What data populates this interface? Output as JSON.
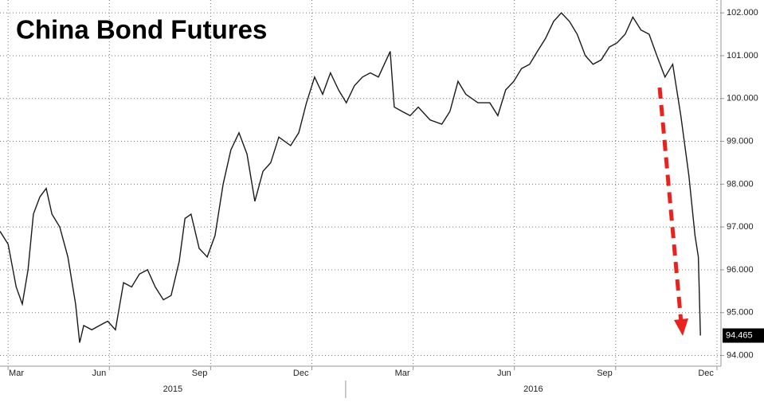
{
  "chart_data": {
    "type": "line",
    "title": "China Bond Futures",
    "x": [
      1.76,
      2.0,
      2.24,
      2.42,
      2.59,
      2.75,
      2.94,
      3.13,
      3.3,
      3.53,
      3.77,
      4.0,
      4.12,
      4.24,
      4.48,
      4.71,
      4.95,
      5.18,
      5.42,
      5.66,
      5.89,
      6.13,
      6.36,
      6.6,
      6.83,
      7.07,
      7.24,
      7.42,
      7.66,
      7.9,
      8.13,
      8.37,
      8.6,
      8.84,
      9.08,
      9.31,
      9.55,
      9.78,
      10.02,
      10.37,
      10.61,
      10.84,
      11.08,
      11.32,
      11.55,
      11.79,
      12.02,
      12.26,
      12.5,
      12.73,
      12.97,
      13.32,
      13.44,
      13.67,
      13.91,
      14.15,
      14.5,
      14.85,
      15.09,
      15.33,
      15.56,
      15.92,
      16.27,
      16.51,
      16.74,
      16.98,
      17.21,
      17.45,
      17.68,
      17.92,
      18.16,
      18.39,
      18.63,
      18.86,
      19.1,
      19.33,
      19.57,
      19.81,
      20.04,
      20.28,
      20.51,
      20.75,
      20.99,
      21.22,
      21.46,
      21.69,
      21.93,
      22.17,
      22.35,
      22.45,
      22.51
    ],
    "values": [
      96.9,
      96.6,
      95.6,
      95.2,
      96.0,
      97.3,
      97.7,
      97.9,
      97.3,
      97.0,
      96.3,
      95.2,
      94.3,
      94.7,
      94.6,
      94.7,
      94.8,
      94.6,
      95.7,
      95.6,
      95.9,
      96.0,
      95.6,
      95.3,
      95.4,
      96.2,
      97.2,
      97.3,
      96.5,
      96.3,
      96.8,
      98.0,
      98.8,
      99.2,
      98.7,
      97.6,
      98.3,
      98.5,
      99.1,
      98.9,
      99.2,
      99.9,
      100.5,
      100.1,
      100.6,
      100.2,
      99.9,
      100.3,
      100.5,
      100.6,
      100.5,
      101.1,
      99.8,
      99.7,
      99.6,
      99.8,
      99.5,
      99.4,
      99.7,
      100.4,
      100.1,
      99.9,
      99.9,
      99.6,
      100.2,
      100.4,
      100.7,
      100.8,
      101.1,
      101.4,
      101.8,
      102.0,
      101.8,
      101.5,
      101.0,
      100.8,
      100.9,
      101.2,
      101.3,
      101.5,
      101.9,
      101.6,
      101.5,
      101.0,
      100.5,
      100.8,
      99.6,
      98.2,
      96.8,
      96.3,
      94.465
    ],
    "color": "#1a1a1a",
    "last_price": 94.465,
    "xlim": [
      1.76,
      23.12
    ],
    "xticks": [
      {
        "value": 2,
        "label": "Mar"
      },
      {
        "value": 5,
        "label": "Jun"
      },
      {
        "value": 8,
        "label": "Sep"
      },
      {
        "value": 11,
        "label": "Dec"
      },
      {
        "value": 14,
        "label": "Mar"
      },
      {
        "value": 17,
        "label": "Jun"
      },
      {
        "value": 20,
        "label": "Sep"
      },
      {
        "value": 23,
        "label": "Dec"
      }
    ],
    "year_labels": [
      "2015",
      "2016"
    ],
    "ylim": [
      93.75,
      102.3
    ],
    "yticks": [
      {
        "value": 94,
        "label": "94.000"
      },
      {
        "value": 95,
        "label": "95.000"
      },
      {
        "value": 96,
        "label": "96.000"
      },
      {
        "value": 97,
        "label": "97.000"
      },
      {
        "value": 98,
        "label": "98.000"
      },
      {
        "value": 99,
        "label": "99.000"
      },
      {
        "value": 100,
        "label": "100.000"
      },
      {
        "value": 101,
        "label": "101.000"
      },
      {
        "value": 102,
        "label": "102.000"
      }
    ],
    "grid": true
  }
}
